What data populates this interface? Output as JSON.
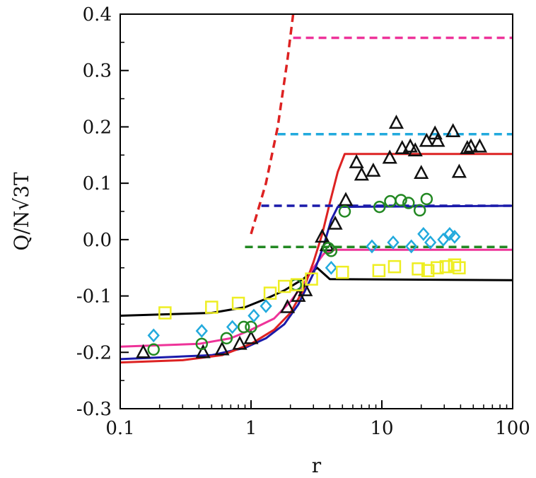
{
  "chart_data": {
    "type": "scatter",
    "xlabel": "r",
    "ylabel": "Q/N√3T",
    "xscale": "log",
    "xlim": [
      0.1,
      100
    ],
    "ylim": [
      -0.3,
      0.4
    ],
    "x_ticks": [
      0.1,
      1,
      10,
      100
    ],
    "x_tick_labels": [
      "0.1",
      "1",
      "10",
      "100"
    ],
    "y_ticks": [
      -0.3,
      -0.2,
      -0.1,
      0.0,
      0.1,
      0.2,
      0.3,
      0.4
    ],
    "y_tick_labels": [
      "-0.3",
      "-0.2",
      "-0.1",
      "0.0",
      "0.1",
      "0.2",
      "0.3",
      "0.4"
    ],
    "grid": false,
    "legend": "none",
    "lines": [
      {
        "color": "#000000",
        "style": "solid",
        "points": [
          [
            0.1,
            -0.135
          ],
          [
            0.5,
            -0.13
          ],
          [
            0.9,
            -0.12
          ],
          [
            1.3,
            -0.105
          ],
          [
            1.8,
            -0.09
          ],
          [
            2.5,
            -0.07
          ],
          [
            3.2,
            -0.05
          ],
          [
            4.0,
            -0.07
          ],
          [
            100,
            -0.072
          ]
        ]
      },
      {
        "color": "#ee3399",
        "style": "solid",
        "points": [
          [
            0.1,
            -0.19
          ],
          [
            0.4,
            -0.185
          ],
          [
            0.7,
            -0.175
          ],
          [
            1.0,
            -0.16
          ],
          [
            1.5,
            -0.14
          ],
          [
            2.0,
            -0.11
          ],
          [
            2.5,
            -0.08
          ],
          [
            3.0,
            -0.05
          ],
          [
            3.6,
            -0.025
          ],
          [
            4.2,
            -0.018
          ],
          [
            100,
            -0.018
          ]
        ]
      },
      {
        "color": "#1a1aaa",
        "style": "solid",
        "points": [
          [
            0.1,
            -0.212
          ],
          [
            0.5,
            -0.205
          ],
          [
            0.9,
            -0.192
          ],
          [
            1.3,
            -0.175
          ],
          [
            1.8,
            -0.15
          ],
          [
            2.3,
            -0.115
          ],
          [
            3.0,
            -0.06
          ],
          [
            3.6,
            -0.01
          ],
          [
            4.1,
            0.035
          ],
          [
            4.6,
            0.058
          ],
          [
            100,
            0.06
          ]
        ]
      },
      {
        "color": "#dd2222",
        "style": "solid",
        "points": [
          [
            0.1,
            -0.218
          ],
          [
            0.3,
            -0.214
          ],
          [
            0.6,
            -0.205
          ],
          [
            1.0,
            -0.185
          ],
          [
            1.5,
            -0.16
          ],
          [
            2.0,
            -0.13
          ],
          [
            2.5,
            -0.09
          ],
          [
            3.0,
            -0.04
          ],
          [
            3.5,
            0.01
          ],
          [
            4.0,
            0.065
          ],
          [
            4.6,
            0.12
          ],
          [
            5.2,
            0.152
          ],
          [
            100,
            0.152
          ]
        ]
      },
      {
        "color": "#228822",
        "style": "dashed",
        "points": [
          [
            0.9,
            -0.013
          ],
          [
            100,
            -0.013
          ]
        ]
      },
      {
        "color": "#1a1aaa",
        "style": "dashed",
        "points": [
          [
            1.2,
            0.06
          ],
          [
            100,
            0.06
          ]
        ]
      },
      {
        "color": "#22aadd",
        "style": "dashed",
        "points": [
          [
            1.6,
            0.187
          ],
          [
            100,
            0.187
          ]
        ]
      },
      {
        "color": "#ee3399",
        "style": "dashed",
        "points": [
          [
            2.1,
            0.358
          ],
          [
            100,
            0.358
          ]
        ]
      },
      {
        "color": "#dd2222",
        "style": "dashed",
        "points": [
          [
            1.0,
            0.01
          ],
          [
            1.3,
            0.1
          ],
          [
            1.6,
            0.2
          ],
          [
            1.9,
            0.32
          ],
          [
            2.1,
            0.4
          ]
        ]
      }
    ],
    "series": [
      {
        "marker": "triangle",
        "color": "#111111",
        "points": [
          [
            0.15,
            -0.2
          ],
          [
            0.43,
            -0.2
          ],
          [
            0.6,
            -0.195
          ],
          [
            0.82,
            -0.185
          ],
          [
            1.0,
            -0.175
          ],
          [
            1.9,
            -0.12
          ],
          [
            2.3,
            -0.1
          ],
          [
            2.6,
            -0.09
          ],
          [
            3.5,
            0.005
          ],
          [
            3.8,
            -0.01
          ],
          [
            4.4,
            0.028
          ],
          [
            5.3,
            0.07
          ],
          [
            6.4,
            0.137
          ],
          [
            7.0,
            0.115
          ],
          [
            8.6,
            0.122
          ],
          [
            11.5,
            0.145
          ],
          [
            12.9,
            0.207
          ],
          [
            14.3,
            0.162
          ],
          [
            16.5,
            0.165
          ],
          [
            18.0,
            0.158
          ],
          [
            20.0,
            0.118
          ],
          [
            22.0,
            0.175
          ],
          [
            25.5,
            0.188
          ],
          [
            26.7,
            0.175
          ],
          [
            35.0,
            0.192
          ],
          [
            39.0,
            0.12
          ],
          [
            45.0,
            0.162
          ],
          [
            48.0,
            0.165
          ],
          [
            56.0,
            0.165
          ]
        ]
      },
      {
        "marker": "circle",
        "color": "#228822",
        "points": [
          [
            0.18,
            -0.195
          ],
          [
            0.42,
            -0.185
          ],
          [
            0.65,
            -0.175
          ],
          [
            0.88,
            -0.155
          ],
          [
            1.0,
            -0.155
          ],
          [
            2.2,
            -0.08
          ],
          [
            3.9,
            -0.015
          ],
          [
            4.1,
            -0.02
          ],
          [
            5.2,
            0.05
          ],
          [
            9.6,
            0.058
          ],
          [
            11.6,
            0.068
          ],
          [
            14.0,
            0.07
          ],
          [
            16.0,
            0.065
          ],
          [
            19.5,
            0.052
          ],
          [
            22.0,
            0.072
          ]
        ]
      },
      {
        "marker": "diamond",
        "color": "#22aadd",
        "points": [
          [
            0.18,
            -0.17
          ],
          [
            0.42,
            -0.162
          ],
          [
            0.72,
            -0.155
          ],
          [
            1.05,
            -0.135
          ],
          [
            1.3,
            -0.118
          ],
          [
            4.1,
            -0.05
          ],
          [
            8.4,
            -0.012
          ],
          [
            12.2,
            -0.005
          ],
          [
            16.8,
            -0.012
          ],
          [
            20.8,
            0.01
          ],
          [
            23.5,
            -0.005
          ],
          [
            29.5,
            0.0
          ],
          [
            33.0,
            0.01
          ],
          [
            36.0,
            0.005
          ]
        ]
      },
      {
        "marker": "square",
        "color": "#eeee22",
        "points": [
          [
            0.22,
            -0.13
          ],
          [
            0.5,
            -0.12
          ],
          [
            0.8,
            -0.113
          ],
          [
            1.4,
            -0.095
          ],
          [
            1.8,
            -0.083
          ],
          [
            2.25,
            -0.08
          ],
          [
            2.9,
            -0.07
          ],
          [
            5.0,
            -0.058
          ],
          [
            9.5,
            -0.055
          ],
          [
            12.5,
            -0.048
          ],
          [
            19.0,
            -0.052
          ],
          [
            22.5,
            -0.055
          ],
          [
            26.5,
            -0.05
          ],
          [
            31.0,
            -0.048
          ],
          [
            36.0,
            -0.045
          ],
          [
            39.0,
            -0.05
          ]
        ]
      }
    ]
  }
}
